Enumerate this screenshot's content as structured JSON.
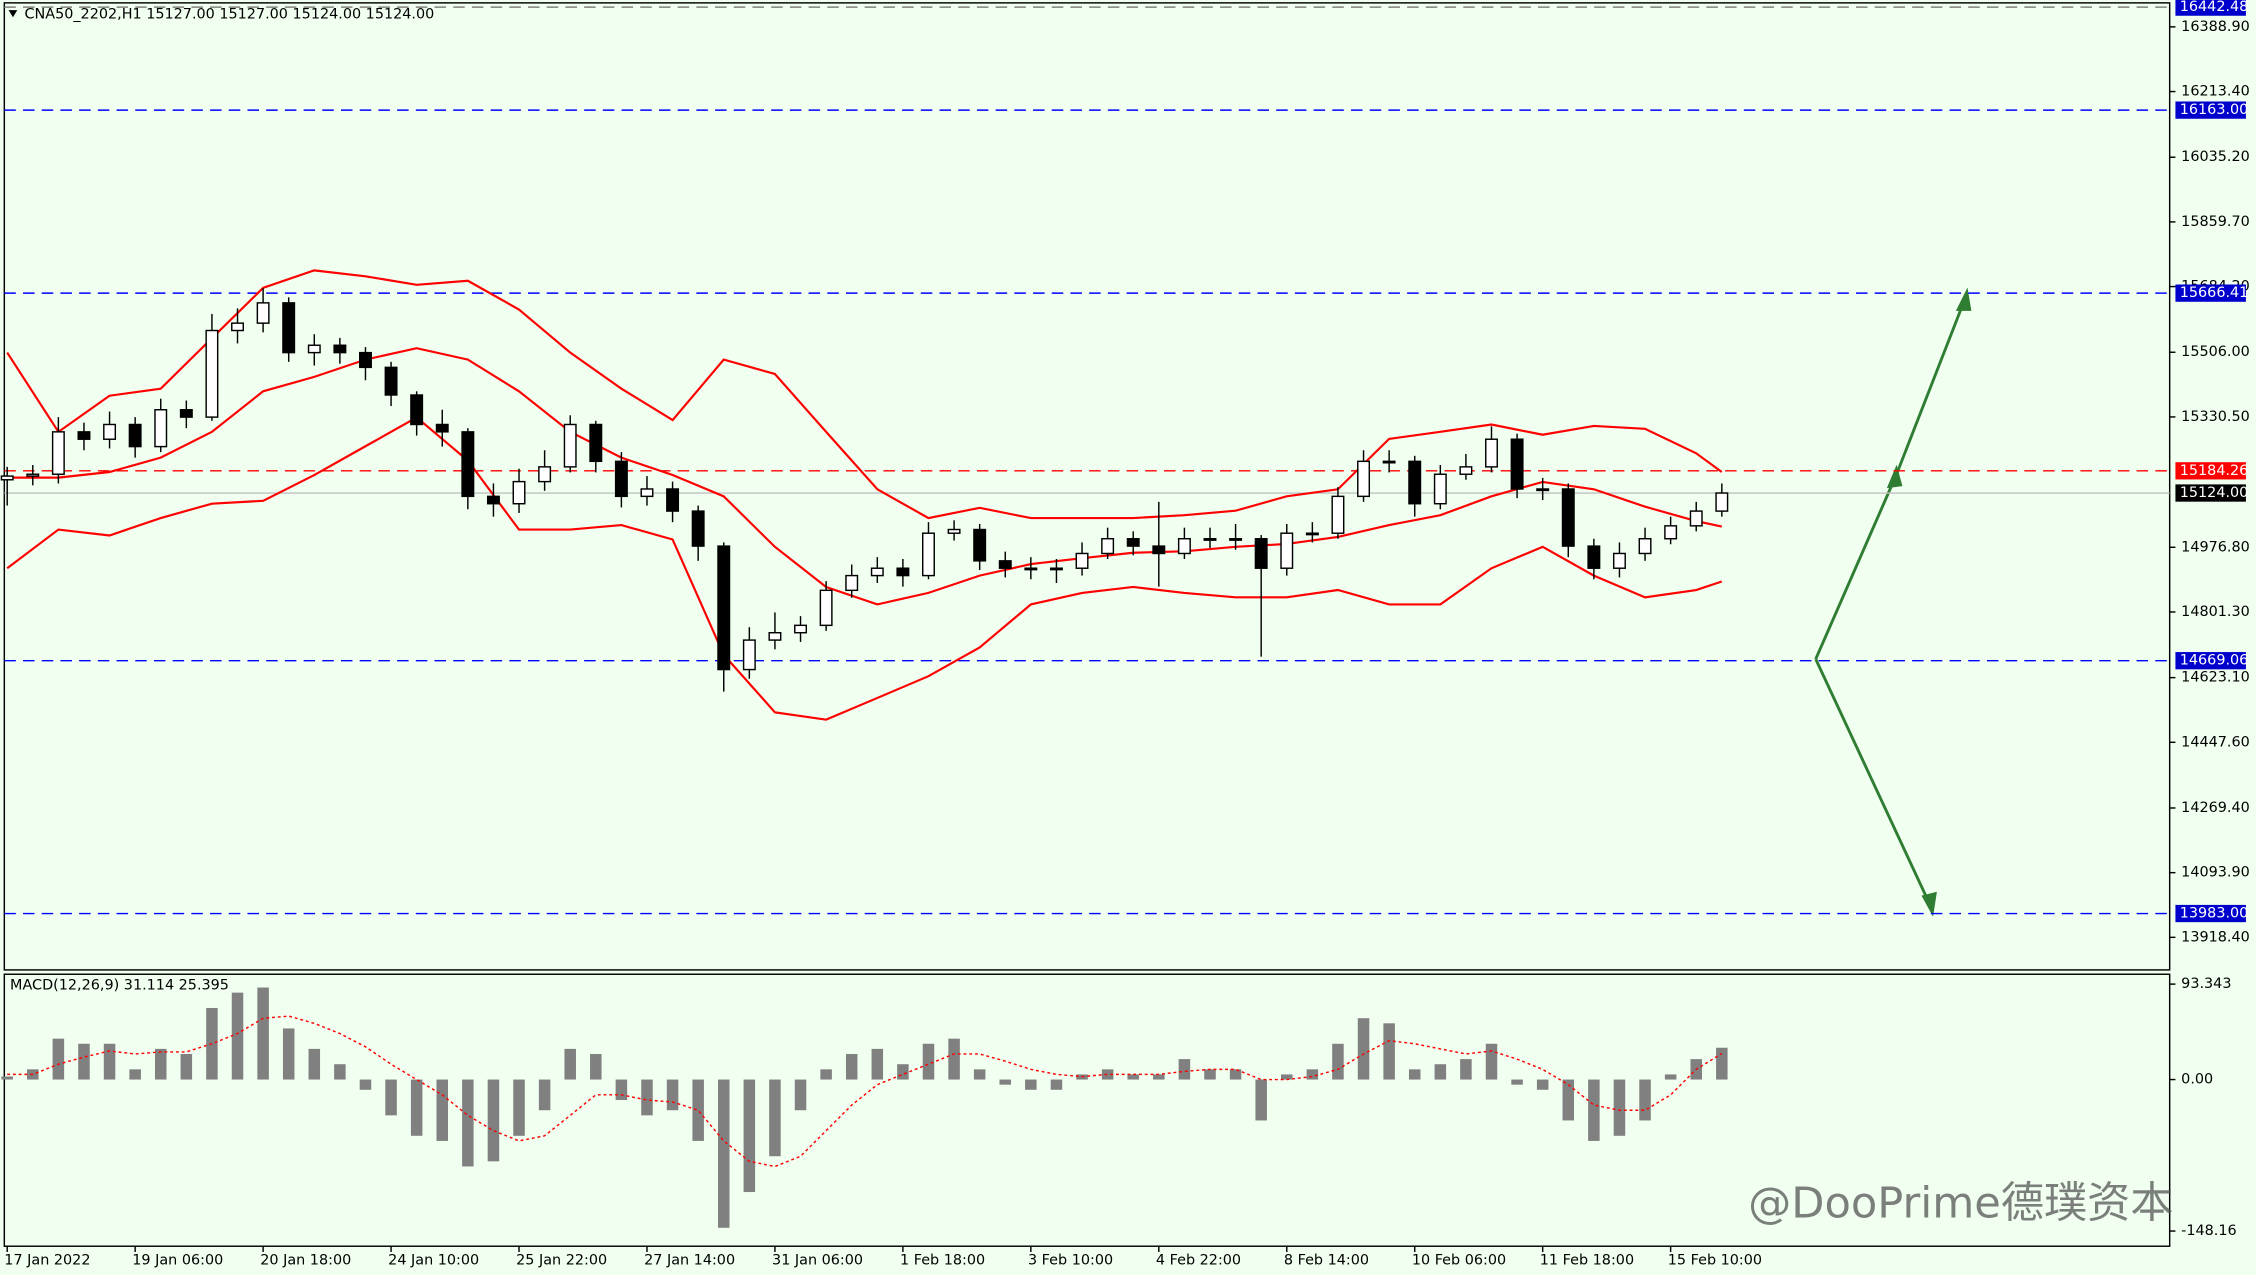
{
  "chart_data": {
    "type": "candlestick",
    "title": "CNA50_2202,H1  15127.00 15127.00 15124.00 15124.00",
    "open": [
      15160,
      15170,
      15175,
      15290,
      15270,
      15310,
      15250,
      15350,
      15330,
      15565,
      15585,
      15640,
      15505,
      15525,
      15505,
      15465,
      15390,
      15310,
      15290,
      15115,
      15095,
      15155,
      15195,
      15310,
      15210,
      15115,
      15135,
      15075,
      14980,
      14645,
      14725,
      14745,
      14765,
      14860,
      14900,
      14920,
      14900,
      15015,
      15025,
      14940,
      14920,
      14920,
      14920,
      14960,
      15000,
      14980,
      14960,
      15000,
      15000,
      15000,
      14920,
      15015,
      15015,
      15115,
      15210,
      15210,
      15095,
      15175,
      15195,
      15270,
      15135,
      15135,
      14980,
      14920,
      14960,
      15000,
      15035,
      15075
    ],
    "high": [
      15195,
      15200,
      15330,
      15315,
      15345,
      15330,
      15380,
      15375,
      15610,
      15625,
      15680,
      15655,
      15555,
      15545,
      15520,
      15480,
      15400,
      15350,
      15300,
      15150,
      15190,
      15240,
      15335,
      15320,
      15235,
      15170,
      15155,
      15090,
      14990,
      14760,
      14800,
      14790,
      14885,
      14930,
      14950,
      14945,
      15045,
      15050,
      15040,
      14965,
      14950,
      14945,
      14990,
      15030,
      15020,
      15100,
      15030,
      15030,
      15040,
      15010,
      15040,
      15045,
      15140,
      15240,
      15240,
      15225,
      15200,
      15230,
      15305,
      15285,
      15165,
      15150,
      15000,
      14990,
      15030,
      15060,
      15100,
      15150
    ],
    "low": [
      15090,
      15145,
      15150,
      15240,
      15245,
      15220,
      15235,
      15300,
      15320,
      15530,
      15560,
      15480,
      15470,
      15475,
      15430,
      15360,
      15280,
      15250,
      15080,
      15060,
      15070,
      15130,
      15180,
      15180,
      15085,
      15090,
      15045,
      14940,
      14585,
      14620,
      14700,
      14720,
      14750,
      14840,
      14880,
      14870,
      14890,
      14995,
      14915,
      14895,
      14890,
      14880,
      14900,
      14945,
      14955,
      14870,
      14945,
      14975,
      14970,
      14680,
      14900,
      14990,
      15000,
      15100,
      15180,
      15060,
      15080,
      15160,
      15180,
      15110,
      15105,
      14950,
      14890,
      14895,
      14940,
      14985,
      15020,
      15060
    ],
    "close": [
      15170,
      15175,
      15290,
      15270,
      15310,
      15250,
      15350,
      15330,
      15565,
      15585,
      15640,
      15505,
      15525,
      15505,
      15465,
      15390,
      15310,
      15290,
      15115,
      15095,
      15155,
      15195,
      15310,
      15210,
      15115,
      15135,
      15075,
      14980,
      14645,
      14725,
      14745,
      14765,
      14860,
      14900,
      14920,
      14900,
      15015,
      15025,
      14940,
      14920,
      14920,
      14920,
      14960,
      15000,
      14980,
      14960,
      15000,
      15000,
      15000,
      14920,
      15015,
      15015,
      15115,
      15210,
      15210,
      15095,
      15175,
      15195,
      15270,
      15135,
      15135,
      14980,
      14920,
      14960,
      15000,
      15035,
      15075,
      15124
    ],
    "color_up": "#ffffff",
    "color_down": "#000000",
    "xlim": [
      0,
      84.5
    ],
    "xticks": [
      {
        "value": 0,
        "label": "17 Jan 2022"
      },
      {
        "value": 5,
        "label": "19 Jan 06:00"
      },
      {
        "value": 10,
        "label": "20 Jan 18:00"
      },
      {
        "value": 15,
        "label": "24 Jan 10:00"
      },
      {
        "value": 20,
        "label": "25 Jan 22:00"
      },
      {
        "value": 25,
        "label": "27 Jan 14:00"
      },
      {
        "value": 30,
        "label": "31 Jan 06:00"
      },
      {
        "value": 35,
        "label": "1 Feb 18:00"
      },
      {
        "value": 40,
        "label": "3 Feb 10:00"
      },
      {
        "value": 45,
        "label": "4 Feb 22:00"
      },
      {
        "value": 50,
        "label": "8 Feb 14:00"
      },
      {
        "value": 55,
        "label": "10 Feb 06:00"
      },
      {
        "value": 60,
        "label": "11 Feb 18:00"
      },
      {
        "value": 65,
        "label": "15 Feb 10:00"
      }
    ],
    "ylim": [
      13830,
      16454
    ],
    "yticks": [
      {
        "value": 16388.9,
        "label": "16388.90"
      },
      {
        "value": 16213.4,
        "label": "16213.40"
      },
      {
        "value": 16035.2,
        "label": "16035.20"
      },
      {
        "value": 15859.7,
        "label": "15859.70"
      },
      {
        "value": 15684.2,
        "label": "15684.20"
      },
      {
        "value": 15506,
        "label": "15506.00"
      },
      {
        "value": 15330.5,
        "label": "15330.50"
      },
      {
        "value": 14976.8,
        "label": "14976.80"
      },
      {
        "value": 14801.3,
        "label": "14801.30"
      },
      {
        "value": 14623.1,
        "label": "14623.10"
      },
      {
        "value": 14447.6,
        "label": "14447.60"
      },
      {
        "value": 14269.4,
        "label": "14269.40"
      },
      {
        "value": 14093.9,
        "label": "14093.90"
      },
      {
        "value": 13918.4,
        "label": "13918.40"
      }
    ],
    "bands": {
      "color": "#ff0000",
      "x": [
        0,
        2,
        4,
        6,
        8,
        10,
        12,
        14,
        16,
        18,
        20,
        22,
        24,
        26,
        28,
        30,
        32,
        34,
        36,
        38,
        40,
        42,
        44,
        46,
        48,
        50,
        52,
        54,
        56,
        58,
        60,
        62,
        64,
        66,
        67
      ],
      "upper": [
        15505,
        15290,
        15388,
        15407,
        15544,
        15681,
        15728,
        15712,
        15689,
        15700,
        15622,
        15505,
        15407,
        15322,
        15486,
        15447,
        15290,
        15134,
        15056,
        15084,
        15056,
        15056,
        15056,
        15064,
        15076,
        15115,
        15134,
        15271,
        15290,
        15310,
        15282,
        15306,
        15298,
        15232,
        15181
      ],
      "middle": [
        15166,
        15166,
        15181,
        15220,
        15290,
        15400,
        15439,
        15486,
        15517,
        15486,
        15400,
        15290,
        15220,
        15173,
        15115,
        14978,
        14869,
        14822,
        14853,
        14900,
        14931,
        14947,
        14962,
        14966,
        14978,
        14986,
        15005,
        15037,
        15064,
        15115,
        15154,
        15134,
        15087,
        15048,
        15033
      ],
      "lower": [
        14920,
        15025,
        15009,
        15056,
        15095,
        15103,
        15173,
        15251,
        15329,
        15212,
        15025,
        15025,
        15037,
        14998,
        14685,
        14529,
        14509,
        14568,
        14627,
        14705,
        14822,
        14853,
        14869,
        14853,
        14841,
        14841,
        14861,
        14822,
        14822,
        14920,
        14978,
        14900,
        14841,
        14861,
        14884
      ]
    },
    "levels": [
      {
        "value": 16442.48,
        "label": "16442.48",
        "color": "#808080",
        "box": "#0000cd",
        "dash": true
      },
      {
        "value": 16163,
        "label": "16163.00",
        "color": "#0000ff",
        "box": "#0000cd",
        "dash": true
      },
      {
        "value": 15666.41,
        "label": "15666.41",
        "color": "#0000ff",
        "box": "#0000cd",
        "dash": true
      },
      {
        "value": 15184.26,
        "label": "15184.26",
        "color": "#ff0000",
        "box": "#ff0000",
        "dash": true
      },
      {
        "value": 15124,
        "label": "15124.00",
        "color": "#c0c0c0",
        "box": "#000000",
        "dash": false
      },
      {
        "value": 14669.06,
        "label": "14669.06",
        "color": "#0000ff",
        "box": "#0000cd",
        "dash": true
      },
      {
        "value": 13983,
        "label": "13983.00",
        "color": "#0000ff",
        "box": "#0000cd",
        "dash": true
      }
    ],
    "macd": {
      "type": "bar",
      "title": "MACD(12,26,9) 31.114 25.395",
      "color": "#808080",
      "signal_color": "#ff0000",
      "ylim": [
        -163,
        103
      ],
      "yticks": [
        93.343,
        {
          "value": 0,
          "label": "0.00"
        },
        -148.16
      ],
      "histogram": [
        3,
        10,
        40,
        35,
        35,
        10,
        30,
        25,
        70,
        85,
        90,
        50,
        30,
        15,
        -10,
        -35,
        -55,
        -60,
        -85,
        -80,
        -55,
        -30,
        30,
        25,
        -20,
        -35,
        -30,
        -60,
        -145,
        -110,
        -75,
        -30,
        10,
        25,
        30,
        15,
        35,
        40,
        10,
        -5,
        -10,
        -10,
        5,
        10,
        5,
        5,
        20,
        10,
        10,
        -40,
        5,
        10,
        35,
        60,
        55,
        10,
        15,
        20,
        35,
        -5,
        -10,
        -40,
        -60,
        -55,
        -40,
        5,
        20,
        31.114
      ],
      "signal": [
        5,
        5,
        15,
        22,
        28,
        25,
        27,
        27,
        35,
        45,
        60,
        62,
        55,
        45,
        32,
        15,
        0,
        -15,
        -35,
        -50,
        -60,
        -55,
        -35,
        -15,
        -15,
        -20,
        -22,
        -30,
        -60,
        -80,
        -85,
        -75,
        -50,
        -25,
        -5,
        5,
        15,
        25,
        25,
        18,
        10,
        5,
        3,
        5,
        5,
        5,
        8,
        10,
        10,
        0,
        0,
        3,
        10,
        25,
        38,
        35,
        30,
        25,
        28,
        20,
        10,
        -5,
        -25,
        -30,
        -30,
        -15,
        10,
        25.395
      ]
    },
    "watermark": "@DooPrime德璞资本"
  }
}
